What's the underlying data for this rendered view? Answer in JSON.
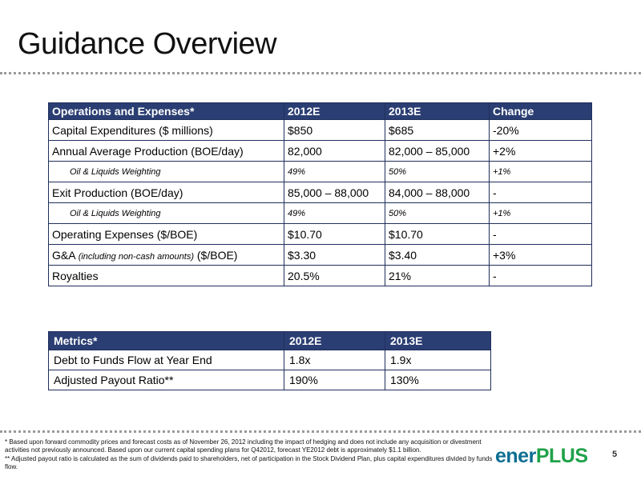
{
  "title": "Guidance Overview",
  "operations": {
    "headers": [
      "Operations and Expenses*",
      "2012E",
      "2013E",
      "Change"
    ],
    "rows": [
      {
        "label": "Capital Expenditures ($ millions)",
        "v2012": "$850",
        "v2013": "$685",
        "change": "-20%"
      },
      {
        "label": "Annual Average Production (BOE/day)",
        "v2012": "82,000",
        "v2013": "82,000 – 85,000",
        "change": "+2%"
      },
      {
        "label": "Oil & Liquids Weighting",
        "v2012": "49%",
        "v2013": "50%",
        "change": "+1%"
      },
      {
        "label": "Exit Production (BOE/day)",
        "v2012": "85,000 – 88,000",
        "v2013": "84,000 – 88,000",
        "change": "-"
      },
      {
        "label": "Oil & Liquids Weighting",
        "v2012": "49%",
        "v2013": "50%",
        "change": "+1%"
      },
      {
        "label": "Operating Expenses ($/BOE)",
        "v2012": "$10.70",
        "v2013": "$10.70",
        "change": "-"
      },
      {
        "label": "G&A",
        "label_note": "(including non-cash amounts)",
        "label_suffix": "($/BOE)",
        "v2012": "$3.30",
        "v2013": "$3.40",
        "change": "+3%"
      },
      {
        "label": "Royalties",
        "v2012": "20.5%",
        "v2013": "21%",
        "change": "-"
      }
    ]
  },
  "metrics": {
    "headers": [
      "Metrics*",
      "2012E",
      "2013E"
    ],
    "rows": [
      {
        "label": "Debt to Funds Flow at Year End",
        "v2012": "1.8x",
        "v2013": "1.9x"
      },
      {
        "label": "Adjusted Payout Ratio**",
        "v2012": "190%",
        "v2013": "130%"
      }
    ]
  },
  "footnotes": {
    "note1": "* Based upon forward commodity prices and forecast costs as of November 26, 2012 including the impact of hedging and does not include any acquisition or divestment activities not previously announced. Based upon our current capital spending plans for Q42012, forecast YE2012 debt is approximately $1.1 billion.",
    "note2": "** Adjusted payout ratio is calculated as the sum of dividends paid to shareholders, net of participation in the Stock Dividend Plan, plus capital expenditures divided by funds flow."
  },
  "logo": {
    "part1": "ener",
    "part2": "PLUS"
  },
  "page_number": "5"
}
